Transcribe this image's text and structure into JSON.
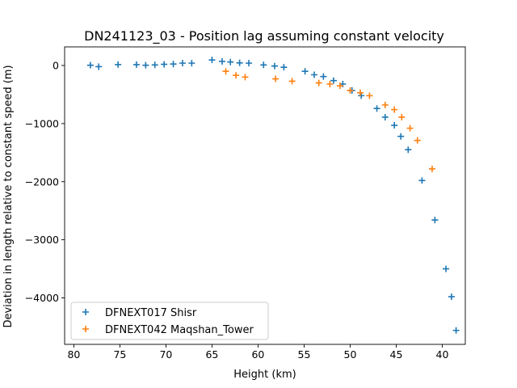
{
  "chart_data": {
    "type": "scatter",
    "title": "DN241123_03 - Position lag assuming constant velocity",
    "xlabel": "Height (km)",
    "ylabel": "Deviation in length relative to constant speed (m)",
    "x_reversed": true,
    "xlim": [
      81,
      37.5
    ],
    "ylim": [
      -4800,
      320
    ],
    "xticks": [
      80,
      75,
      70,
      65,
      60,
      55,
      50,
      45,
      40
    ],
    "yticks": [
      0,
      -1000,
      -2000,
      -3000,
      -4000
    ],
    "marker": "+",
    "legend_position": "lower-left",
    "series": [
      {
        "name": "DFNEXT017 Shisr",
        "color": "#1f77b4",
        "points": [
          [
            78.2,
            5
          ],
          [
            77.3,
            -20
          ],
          [
            75.2,
            15
          ],
          [
            73.2,
            15
          ],
          [
            72.2,
            5
          ],
          [
            71.2,
            10
          ],
          [
            70.2,
            20
          ],
          [
            69.2,
            25
          ],
          [
            68.2,
            40
          ],
          [
            67.2,
            40
          ],
          [
            65.0,
            95
          ],
          [
            63.9,
            70
          ],
          [
            63.0,
            60
          ],
          [
            62.0,
            45
          ],
          [
            61.0,
            40
          ],
          [
            59.4,
            10
          ],
          [
            58.2,
            -10
          ],
          [
            57.2,
            -30
          ],
          [
            54.9,
            -100
          ],
          [
            53.9,
            -160
          ],
          [
            52.9,
            -190
          ],
          [
            51.8,
            -260
          ],
          [
            50.8,
            -320
          ],
          [
            49.8,
            -430
          ],
          [
            48.8,
            -520
          ],
          [
            47.1,
            -740
          ],
          [
            46.2,
            -890
          ],
          [
            45.2,
            -1030
          ],
          [
            44.5,
            -1220
          ],
          [
            43.7,
            -1450
          ],
          [
            42.2,
            -1980
          ],
          [
            40.8,
            -2660
          ],
          [
            39.6,
            -3500
          ],
          [
            39.0,
            -3980
          ],
          [
            38.5,
            -4560
          ]
        ]
      },
      {
        "name": "DFNEXT042 Maqshan_Tower",
        "color": "#ff7f0e",
        "points": [
          [
            63.5,
            -100
          ],
          [
            62.4,
            -170
          ],
          [
            61.4,
            -200
          ],
          [
            58.1,
            -230
          ],
          [
            56.3,
            -270
          ],
          [
            53.4,
            -300
          ],
          [
            52.2,
            -320
          ],
          [
            51.1,
            -350
          ],
          [
            50.0,
            -430
          ],
          [
            48.9,
            -470
          ],
          [
            47.9,
            -520
          ],
          [
            46.2,
            -680
          ],
          [
            45.2,
            -760
          ],
          [
            44.4,
            -890
          ],
          [
            43.5,
            -1080
          ],
          [
            42.7,
            -1290
          ],
          [
            41.1,
            -1780
          ]
        ]
      }
    ]
  }
}
